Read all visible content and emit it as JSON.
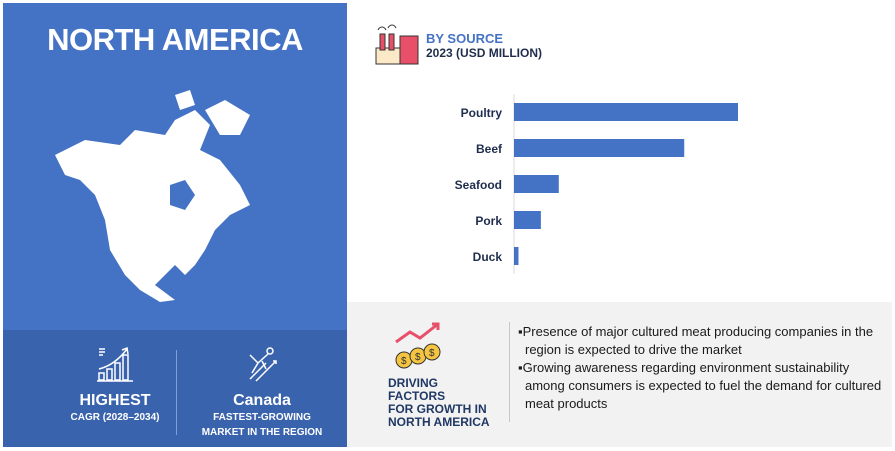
{
  "region": {
    "title": "NORTH AMERICA"
  },
  "stats": [
    {
      "headline": "HIGHEST",
      "sub": "CAGR (2028–2034)"
    },
    {
      "headline": "Canada",
      "sub1": "FASTEST-GROWING",
      "sub2": "MARKET IN THE REGION"
    }
  ],
  "chart_header": {
    "title": "BY SOURCE",
    "subtitle": "2023 (USD MILLION)"
  },
  "chart_data": {
    "type": "bar",
    "orientation": "horizontal",
    "title": "BY SOURCE",
    "subtitle": "2023 (USD MILLION)",
    "categories": [
      "Poultry",
      "Beef",
      "Seafood",
      "Pork",
      "Duck"
    ],
    "values": [
      100,
      76,
      20,
      12,
      2
    ],
    "value_note": "relative bar lengths (no axis values printed)",
    "grid": false,
    "color": "#4472c4"
  },
  "drivers": {
    "title_lines": [
      "DRIVING FACTORS",
      "FOR GROWTH IN",
      "NORTH AMERICA"
    ],
    "points": [
      "▪Presence of major cultured meat producing companies in the region is expected to drive the market",
      "▪Growing awareness regarding environment sustainability among consumers is expected to fuel the demand for cultured meat products"
    ]
  },
  "colors": {
    "panel": "#4472c4",
    "panel_dark": "#3a63ad",
    "bar": "#4472c4",
    "map": "#ffffff"
  }
}
